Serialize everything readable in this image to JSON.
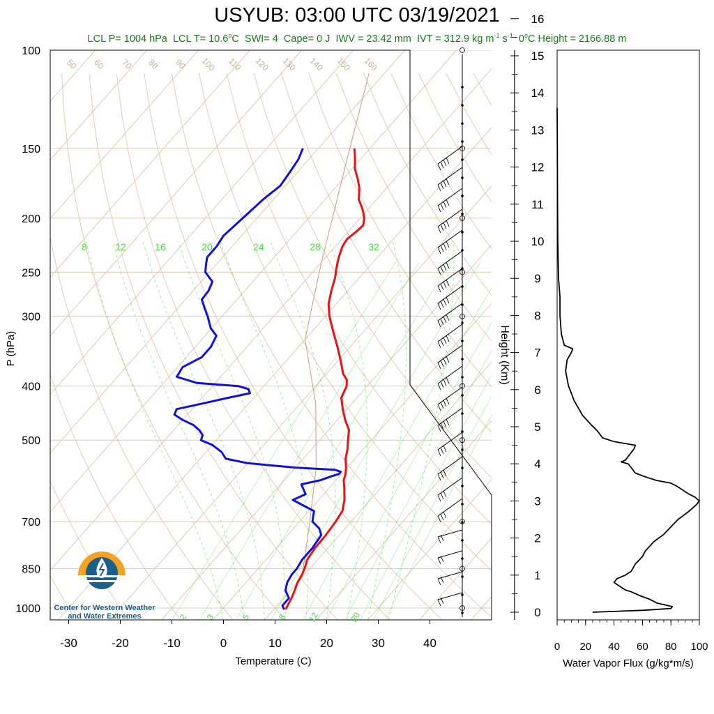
{
  "title": "USYUB: 03:00 UTC 03/19/2021",
  "subtitle": {
    "lcl_p": "LCL P= 1004 hPa",
    "lcl_t_prefix": "LCL T= 10.6",
    "lcl_t_unit": "C",
    "swi": "SWI= 4",
    "cape": "Cape= 0 J",
    "iwv": "IWV = 23.42 mm",
    "ivt_prefix": "IVT = 312.9 kg m",
    "ivt_mid": " s",
    "zero_height_prefix": "0",
    "zero_height_rest": "C Height = 2166.88 m"
  },
  "logo_text": "Center for Western Weather and Water Extremes",
  "colors": {
    "temperature": "#ee1111",
    "dewpoint": "#1111dd",
    "isotherm": "#e0c9b0",
    "adiabat": "#d9b38c",
    "mixing_ratio": "#33dd33",
    "flux": "#000000",
    "title_green": "#1a7a1a"
  },
  "chart_data": [
    {
      "type": "line",
      "name": "skew-t",
      "xlabel": "Temperature (C)",
      "ylabel": "P (hPa)",
      "xlim": [
        -35,
        50
      ],
      "ylim": [
        1050,
        100
      ],
      "yscale": "log",
      "x_ticks": [
        "-30",
        "-20",
        "-10",
        "0",
        "10",
        "20",
        "30",
        "40"
      ],
      "y_ticks": [
        "100",
        "150",
        "200",
        "250",
        "300",
        "400",
        "500",
        "700",
        "850",
        "1000"
      ],
      "mixing_ratio_upper_labels": [
        "8",
        "12",
        "16",
        "20",
        "24",
        "28",
        "32"
      ],
      "mixing_ratio_lower_labels": [
        "2",
        "3",
        "5",
        "8",
        "12",
        "20"
      ],
      "dry_adiabat_labels": [
        "50",
        "60",
        "70",
        "80",
        "90",
        "100",
        "110",
        "120",
        "130",
        "140",
        "150",
        "160"
      ],
      "series": [
        {
          "key": "temperature",
          "points": [
            [
              1006,
              12.3
            ],
            [
              990,
              12.0
            ],
            [
              960,
              11.5
            ],
            [
              930,
              10.8
            ],
            [
              900,
              10.0
            ],
            [
              870,
              9.5
            ],
            [
              850,
              9.0
            ],
            [
              820,
              8.0
            ],
            [
              780,
              7.5
            ],
            [
              740,
              7.4
            ],
            [
              700,
              7.0
            ],
            [
              670,
              6.5
            ],
            [
              640,
              5.0
            ],
            [
              610,
              3.0
            ],
            [
              590,
              1.5
            ],
            [
              575,
              0.8
            ],
            [
              560,
              -0.2
            ],
            [
              540,
              -1.8
            ],
            [
              520,
              -3.0
            ],
            [
              500,
              -4.5
            ],
            [
              480,
              -6.0
            ],
            [
              460,
              -8.5
            ],
            [
              440,
              -10.8
            ],
            [
              420,
              -13.0
            ],
            [
              400,
              -14.0
            ],
            [
              390,
              -15.0
            ],
            [
              380,
              -16.8
            ],
            [
              360,
              -19.5
            ],
            [
              340,
              -22.5
            ],
            [
              320,
              -25.8
            ],
            [
              300,
              -29.2
            ],
            [
              285,
              -31.5
            ],
            [
              270,
              -33.2
            ],
            [
              255,
              -34.8
            ],
            [
              245,
              -36.2
            ],
            [
              235,
              -37.5
            ],
            [
              225,
              -38.6
            ],
            [
              218,
              -39.0
            ],
            [
              212,
              -38.5
            ],
            [
              206,
              -38.2
            ],
            [
              200,
              -39.2
            ],
            [
              193,
              -41.0
            ],
            [
              185,
              -43.5
            ],
            [
              177,
              -45.2
            ],
            [
              170,
              -47.2
            ],
            [
              163,
              -49.5
            ],
            [
              157,
              -51.0
            ],
            [
              150,
              -53.0
            ]
          ]
        },
        {
          "key": "dewpoint",
          "points": [
            [
              1006,
              12.0
            ],
            [
              990,
              11.0
            ],
            [
              960,
              11.0
            ],
            [
              930,
              9.0
            ],
            [
              900,
              8.0
            ],
            [
              870,
              7.5
            ],
            [
              850,
              7.5
            ],
            [
              820,
              7.0
            ],
            [
              780,
              7.0
            ],
            [
              740,
              6.5
            ],
            [
              720,
              5.0
            ],
            [
              700,
              2.5
            ],
            [
              690,
              2.0
            ],
            [
              670,
              1.0
            ],
            [
              655,
              -2.0
            ],
            [
              640,
              -5.0
            ],
            [
              625,
              -3.5
            ],
            [
              610,
              -5.0
            ],
            [
              600,
              -6.0
            ],
            [
              590,
              -3.0
            ],
            [
              580,
              -1.5
            ],
            [
              575,
              -0.5
            ],
            [
              570,
              -0.5
            ],
            [
              565,
              -2.0
            ],
            [
              560,
              -10.0
            ],
            [
              555,
              -15.0
            ],
            [
              550,
              -20.0
            ],
            [
              540,
              -25.0
            ],
            [
              525,
              -27.0
            ],
            [
              510,
              -30.0
            ],
            [
              500,
              -33.0
            ],
            [
              490,
              -33.5
            ],
            [
              480,
              -35.0
            ],
            [
              470,
              -37.0
            ],
            [
              460,
              -40.0
            ],
            [
              450,
              -42.5
            ],
            [
              440,
              -43.0
            ],
            [
              430,
              -39.0
            ],
            [
              420,
              -35.0
            ],
            [
              412,
              -31.5
            ],
            [
              405,
              -32.5
            ],
            [
              400,
              -35.0
            ],
            [
              395,
              -43.5
            ],
            [
              385,
              -48.5
            ],
            [
              370,
              -49.0
            ],
            [
              355,
              -47.0
            ],
            [
              340,
              -47.0
            ],
            [
              325,
              -47.8
            ],
            [
              315,
              -50.2
            ],
            [
              300,
              -52.8
            ],
            [
              290,
              -54.8
            ],
            [
              280,
              -56.8
            ],
            [
              270,
              -57.0
            ],
            [
              260,
              -57.8
            ],
            [
              250,
              -60.8
            ],
            [
              242,
              -62.0
            ],
            [
              235,
              -63.0
            ],
            [
              225,
              -63.0
            ],
            [
              215,
              -63.5
            ],
            [
              205,
              -63.0
            ],
            [
              195,
              -62.5
            ],
            [
              185,
              -62.0
            ],
            [
              175,
              -61.0
            ],
            [
              165,
              -61.5
            ],
            [
              157,
              -62.0
            ],
            [
              150,
              -63.0
            ]
          ]
        }
      ]
    },
    {
      "type": "line",
      "name": "water-vapor-flux",
      "xlabel": "Water Vapor Flux (g/kg*m/s)",
      "ylabel": "Height (Km)",
      "xlim": [
        0,
        100
      ],
      "ylim": [
        0,
        16.5
      ],
      "x_ticks": [
        "0",
        "20",
        "40",
        "60",
        "80",
        "100"
      ],
      "y_ticks": [
        "0",
        "1",
        "2",
        "3",
        "4",
        "5",
        "6",
        "7",
        "8",
        "9",
        "10",
        "11",
        "12",
        "13",
        "14",
        "15",
        "16"
      ],
      "points": [
        [
          25,
          0.0
        ],
        [
          60,
          0.05
        ],
        [
          80,
          0.1
        ],
        [
          81,
          0.15
        ],
        [
          70,
          0.25
        ],
        [
          65,
          0.35
        ],
        [
          58,
          0.45
        ],
        [
          52,
          0.55
        ],
        [
          48,
          0.6
        ],
        [
          44,
          0.7
        ],
        [
          40,
          0.8
        ],
        [
          42,
          0.9
        ],
        [
          48,
          1.0
        ],
        [
          52,
          1.1
        ],
        [
          55,
          1.3
        ],
        [
          60,
          1.5
        ],
        [
          62,
          1.65
        ],
        [
          68,
          1.9
        ],
        [
          75,
          2.1
        ],
        [
          80,
          2.3
        ],
        [
          85,
          2.5
        ],
        [
          92,
          2.7
        ],
        [
          98,
          2.9
        ],
        [
          100,
          3.0
        ],
        [
          97,
          3.1
        ],
        [
          92,
          3.2
        ],
        [
          88,
          3.3
        ],
        [
          84,
          3.4
        ],
        [
          80,
          3.48
        ],
        [
          70,
          3.55
        ],
        [
          62,
          3.65
        ],
        [
          55,
          3.75
        ],
        [
          52,
          3.9
        ],
        [
          50,
          4.0
        ],
        [
          45,
          4.05
        ],
        [
          48,
          4.1
        ],
        [
          50,
          4.2
        ],
        [
          52,
          4.3
        ],
        [
          54,
          4.4
        ],
        [
          55,
          4.5
        ],
        [
          40,
          4.6
        ],
        [
          32,
          4.7
        ],
        [
          28,
          4.9
        ],
        [
          24,
          5.05
        ],
        [
          18,
          5.3
        ],
        [
          15,
          5.5
        ],
        [
          12,
          5.7
        ],
        [
          10,
          5.9
        ],
        [
          8,
          6.1
        ],
        [
          6,
          6.5
        ],
        [
          7,
          6.8
        ],
        [
          10,
          7.0
        ],
        [
          11,
          7.1
        ],
        [
          5,
          7.2
        ],
        [
          3,
          7.5
        ],
        [
          2,
          8.0
        ],
        [
          2,
          8.5
        ],
        [
          1,
          9.0
        ],
        [
          0.5,
          10.0
        ],
        [
          0.3,
          11.0
        ],
        [
          0.2,
          12.0
        ],
        [
          0.1,
          13.0
        ],
        [
          0,
          13.6
        ]
      ]
    }
  ]
}
